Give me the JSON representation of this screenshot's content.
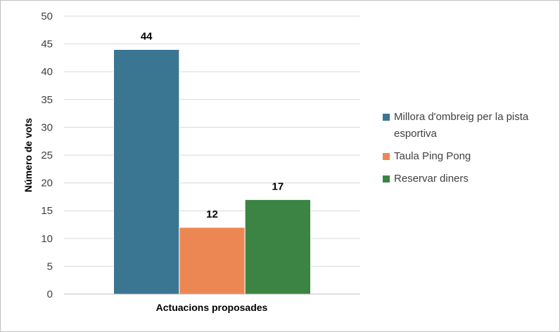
{
  "chart_data": {
    "type": "bar",
    "categories": [
      "Actuacions proposades"
    ],
    "series": [
      {
        "name": "Millora d'ombreig per la pista esportiva",
        "values": [
          44
        ],
        "color": "#3a7592"
      },
      {
        "name": "Taula Ping Pong",
        "values": [
          12
        ],
        "color": "#ec8753"
      },
      {
        "name": "Reservar diners",
        "values": [
          17
        ],
        "color": "#3b8443"
      }
    ],
    "title": "",
    "xlabel": "Actuacions proposades",
    "ylabel": "Número de vots",
    "ylim": [
      0,
      50
    ],
    "yticks": [
      0,
      5,
      10,
      15,
      20,
      25,
      30,
      35,
      40,
      45,
      50
    ],
    "grid": true,
    "legend_position": "right",
    "data_labels": true
  }
}
